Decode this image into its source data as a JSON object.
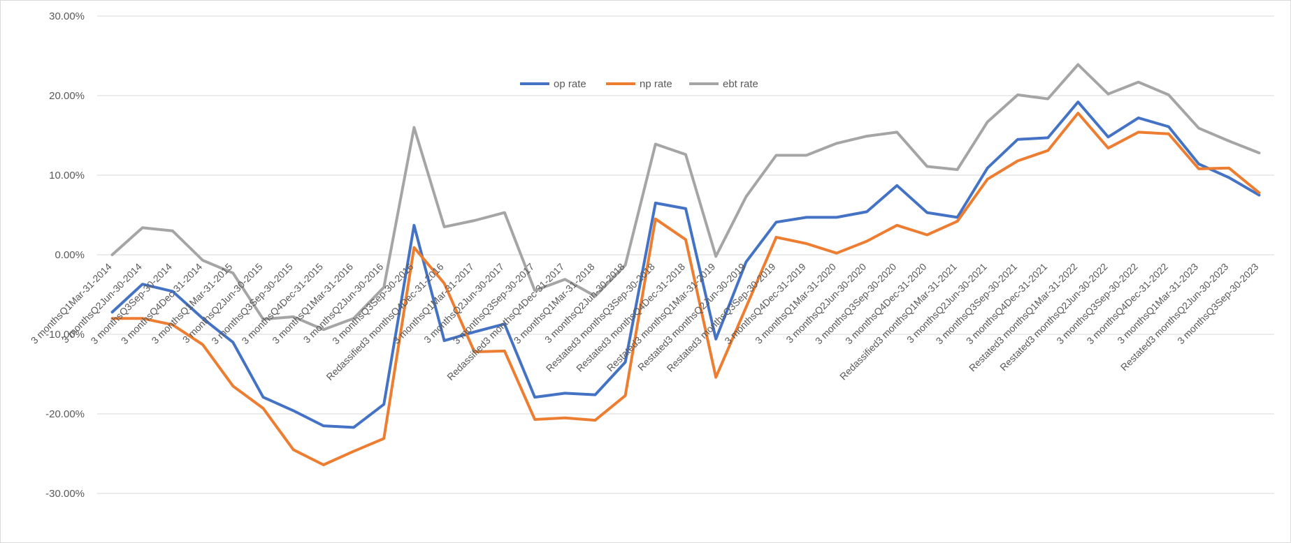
{
  "chart_data": {
    "type": "line",
    "title": "",
    "xlabel": "",
    "ylabel": "",
    "ylim": [
      -0.35,
      0.3
    ],
    "yticks": [
      {
        "value": 0.3,
        "label": "30.00%"
      },
      {
        "value": 0.2,
        "label": "20.00%"
      },
      {
        "value": 0.1,
        "label": "10.00%"
      },
      {
        "value": 0.0,
        "label": "0.00%"
      },
      {
        "value": -0.1,
        "label": "-10.00%"
      },
      {
        "value": -0.2,
        "label": "-20.00%"
      },
      {
        "value": -0.3,
        "label": "-30.00%"
      }
    ],
    "grid": true,
    "legend_position": "top-center",
    "categories": [
      "3 monthsQ1Mar-31-2014",
      "3 monthsQ2Jun-30-2014",
      "3 monthsQ3Sep-30-2014",
      "3 monthsQ4Dec-31-2014",
      "3 monthsQ1Mar-31-2015",
      "3 monthsQ2Jun-30-2015",
      "3 monthsQ3Sep-30-2015",
      "3 monthsQ4Dec-31-2015",
      "3 monthsQ1Mar-31-2016",
      "3 monthsQ2Jun-30-2016",
      "3 monthsQ3Sep-30-2016",
      "Redassified3 monthsQ4Dec-31-2016",
      "3 monthsQ1Mar-31-2017",
      "3 monthsQ2Jun-30-2017",
      "3 monthsQ3Sep-30-2017",
      "Redassified3 monthsQ4Dec-31-2017",
      "3 monthsQ1Mar-31-2018",
      "3 monthsQ2Jun-30-2018",
      "Restated3 monthsQ3Sep-30-2018",
      "Restated3 monthsQ4Dec-31-2018",
      "Restated3 monthsQ1Mar-31-2019",
      "Restated3 monthsQ2Jun-30-2019",
      "Restated3 monthsQ3Sep-30-2019",
      "3 monthsQ4Dec-31-2019",
      "3 monthsQ1Mar-31-2020",
      "3 monthsQ2Jun-30-2020",
      "3 monthsQ3Sep-30-2020",
      "3 monthsQ4Dec-31-2020",
      "Redassified3 monthsQ1Mar-31-2021",
      "3 monthsQ2Jun-30-2021",
      "3 monthsQ3Sep-30-2021",
      "3 monthsQ4Dec-31-2021",
      "Restated3 monthsQ1Mar-31-2022",
      "Restated3 monthsQ2Jun-30-2022",
      "3 monthsQ3Sep-30-2022",
      "3 monthsQ4Dec-31-2022",
      "3 monthsQ1Mar-31-2023",
      "Restated3 monthsQ2Jun-30-2023",
      "3 monthsQ3Sep-30-2023"
    ],
    "series": [
      {
        "name": "op rate",
        "color": "#4472c4",
        "values": [
          -0.072,
          -0.037,
          -0.046,
          -0.08,
          -0.11,
          -0.179,
          -0.196,
          -0.215,
          -0.217,
          -0.188,
          0.037,
          -0.108,
          -0.097,
          -0.087,
          -0.179,
          -0.174,
          -0.176,
          -0.135,
          0.065,
          0.058,
          -0.106,
          -0.009,
          0.041,
          0.047,
          0.047,
          0.054,
          0.087,
          0.053,
          0.047,
          0.109,
          0.145,
          0.147,
          0.192,
          0.148,
          0.172,
          0.161,
          0.114,
          0.097,
          0.075
        ]
      },
      {
        "name": "np rate",
        "color": "#ed7d31",
        "values": [
          -0.08,
          -0.08,
          -0.088,
          -0.113,
          -0.165,
          -0.193,
          -0.245,
          -0.264,
          -0.247,
          -0.231,
          0.009,
          -0.036,
          -0.122,
          -0.121,
          -0.207,
          -0.205,
          -0.208,
          -0.177,
          0.045,
          0.019,
          -0.154,
          -0.066,
          0.022,
          0.014,
          0.002,
          0.017,
          0.037,
          0.025,
          0.042,
          0.095,
          0.118,
          0.131,
          0.178,
          0.134,
          0.154,
          0.152,
          0.108,
          0.109,
          0.078
        ]
      },
      {
        "name": "ebt rate",
        "color": "#a5a5a5",
        "values": [
          0.0,
          0.034,
          0.03,
          -0.007,
          -0.023,
          -0.081,
          -0.078,
          -0.094,
          -0.08,
          -0.041,
          0.16,
          0.035,
          0.043,
          0.053,
          -0.045,
          -0.031,
          -0.052,
          -0.013,
          0.139,
          0.126,
          -0.002,
          0.073,
          0.125,
          0.125,
          0.14,
          0.149,
          0.154,
          0.111,
          0.107,
          0.167,
          0.201,
          0.196,
          0.239,
          0.202,
          0.217,
          0.201,
          0.159,
          0.143,
          0.128
        ]
      }
    ]
  }
}
